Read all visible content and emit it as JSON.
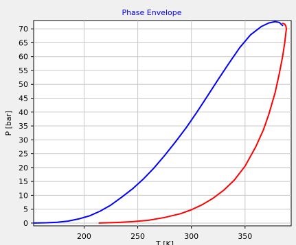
{
  "chart_data": {
    "type": "line",
    "title": "Phase Envelope",
    "xlabel": "T [K]",
    "ylabel": "P [bar]",
    "xlim": [
      153,
      393
    ],
    "ylim": [
      -1,
      73
    ],
    "xticks": [
      200,
      250,
      300,
      350
    ],
    "yticks": [
      0,
      5,
      10,
      15,
      20,
      25,
      30,
      35,
      40,
      45,
      50,
      55,
      60,
      65,
      70
    ],
    "grid": true,
    "colors": {
      "background": "#f0f0f0",
      "plot_background": "#ffffff",
      "grid": "#c8c8c8",
      "title": "#0000ee"
    },
    "series": [
      {
        "color": "#0000ff",
        "x": [
          153,
          165,
          175,
          185,
          195,
          205,
          215,
          225,
          235,
          245,
          255,
          265,
          275,
          285,
          295,
          305,
          315,
          325,
          335,
          345,
          355,
          365,
          372,
          378,
          382,
          385
        ],
        "y": [
          0,
          0.1,
          0.3,
          0.7,
          1.5,
          2.6,
          4.3,
          6.5,
          9.3,
          12.3,
          15.8,
          19.8,
          24.3,
          29.2,
          34.3,
          39.9,
          45.8,
          51.8,
          57.6,
          63.2,
          67.8,
          70.8,
          72.1,
          72.6,
          72.3,
          71.2
        ]
      },
      {
        "color": "#ff0000",
        "x": [
          214,
          230,
          245,
          260,
          275,
          290,
          300,
          310,
          320,
          330,
          340,
          350,
          360,
          367,
          372,
          378,
          382,
          385,
          387,
          388,
          388.5,
          388,
          387,
          385
        ],
        "y": [
          0,
          0.2,
          0.5,
          1,
          2,
          3.4,
          4.8,
          6.6,
          8.9,
          11.8,
          15.5,
          20.5,
          27.5,
          33.5,
          39,
          47,
          54,
          60,
          65,
          68.5,
          70,
          71,
          71.7,
          72
        ]
      }
    ]
  }
}
